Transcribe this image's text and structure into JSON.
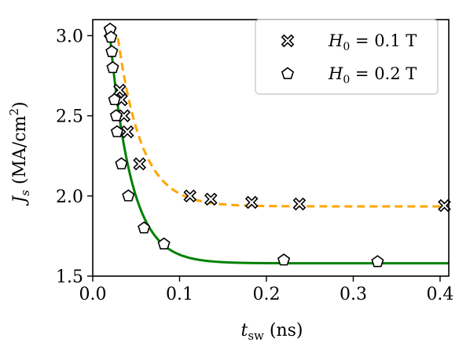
{
  "chart_data": {
    "type": "scatter",
    "xlabel": "t_sw (ns)",
    "ylabel": "J_s (MA/cm²)",
    "xlim": [
      0.0,
      0.41
    ],
    "ylim": [
      1.5,
      3.1
    ],
    "xticks": [
      "0.0",
      "0.1",
      "0.2",
      "0.3",
      "0.4"
    ],
    "yticks": [
      "1.5",
      "2.0",
      "2.5",
      "3.0"
    ],
    "grid": false,
    "legend_position": "top-right",
    "series": [
      {
        "name": "H0 = 0.1 T",
        "marker": "x-filled",
        "fit_color": "#FFA500",
        "fit_style": "dashed",
        "points": [
          {
            "x": 0.02,
            "y": 3.02
          },
          {
            "x": 0.031,
            "y": 2.66
          },
          {
            "x": 0.033,
            "y": 2.6
          },
          {
            "x": 0.036,
            "y": 2.5
          },
          {
            "x": 0.04,
            "y": 2.4
          },
          {
            "x": 0.054,
            "y": 2.2
          },
          {
            "x": 0.112,
            "y": 2.0
          },
          {
            "x": 0.136,
            "y": 1.98
          },
          {
            "x": 0.183,
            "y": 1.96
          },
          {
            "x": 0.238,
            "y": 1.95
          },
          {
            "x": 0.405,
            "y": 1.94
          }
        ]
      },
      {
        "name": "H0 = 0.2 T",
        "marker": "pentagon",
        "fit_color": "#008000",
        "fit_style": "solid",
        "points": [
          {
            "x": 0.02,
            "y": 3.04
          },
          {
            "x": 0.021,
            "y": 2.99
          },
          {
            "x": 0.022,
            "y": 2.9
          },
          {
            "x": 0.023,
            "y": 2.8
          },
          {
            "x": 0.025,
            "y": 2.6
          },
          {
            "x": 0.027,
            "y": 2.5
          },
          {
            "x": 0.028,
            "y": 2.4
          },
          {
            "x": 0.033,
            "y": 2.2
          },
          {
            "x": 0.041,
            "y": 2.0
          },
          {
            "x": 0.059,
            "y": 1.8
          },
          {
            "x": 0.082,
            "y": 1.7
          },
          {
            "x": 0.22,
            "y": 1.6
          },
          {
            "x": 0.328,
            "y": 1.59
          }
        ]
      }
    ],
    "fits": [
      {
        "series": "H0 = 0.1 T",
        "x_start": 0.029,
        "x_end": 0.41,
        "y_inf": 1.935,
        "amp": 1.05,
        "tau": 0.0275,
        "shift": 0.029
      },
      {
        "series": "H0 = 0.2 T",
        "x_start": 0.019,
        "x_end": 0.41,
        "y_inf": 1.58,
        "amp": 1.47,
        "tau": 0.0245,
        "shift": 0.019
      }
    ]
  }
}
